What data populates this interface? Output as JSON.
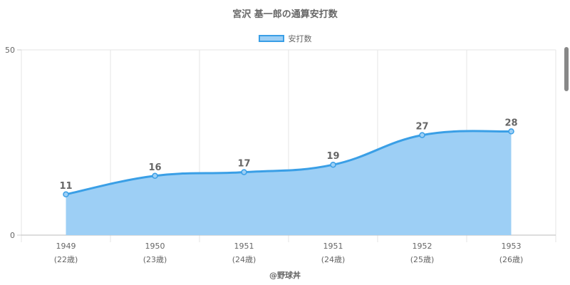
{
  "chart_data": {
    "type": "area",
    "title": "宮沢 基一郎の通算安打数",
    "legend": {
      "label": "安打数",
      "position": "top"
    },
    "categories": [
      "1949",
      "1950",
      "1951",
      "1951",
      "1952",
      "1953"
    ],
    "sublabels": [
      "(22歳)",
      "(23歳)",
      "(24歳)",
      "(24歳)",
      "(25歳)",
      "(26歳)"
    ],
    "series": [
      {
        "name": "安打数",
        "values": [
          11,
          16,
          17,
          19,
          27,
          28
        ]
      }
    ],
    "ylim": [
      0,
      50
    ],
    "yticks": [
      "0",
      "50"
    ],
    "grid": true,
    "colors": {
      "line": "#3a9fe6",
      "fill": "#9dcff5"
    }
  },
  "footer": {
    "credit": "@野球丼"
  }
}
